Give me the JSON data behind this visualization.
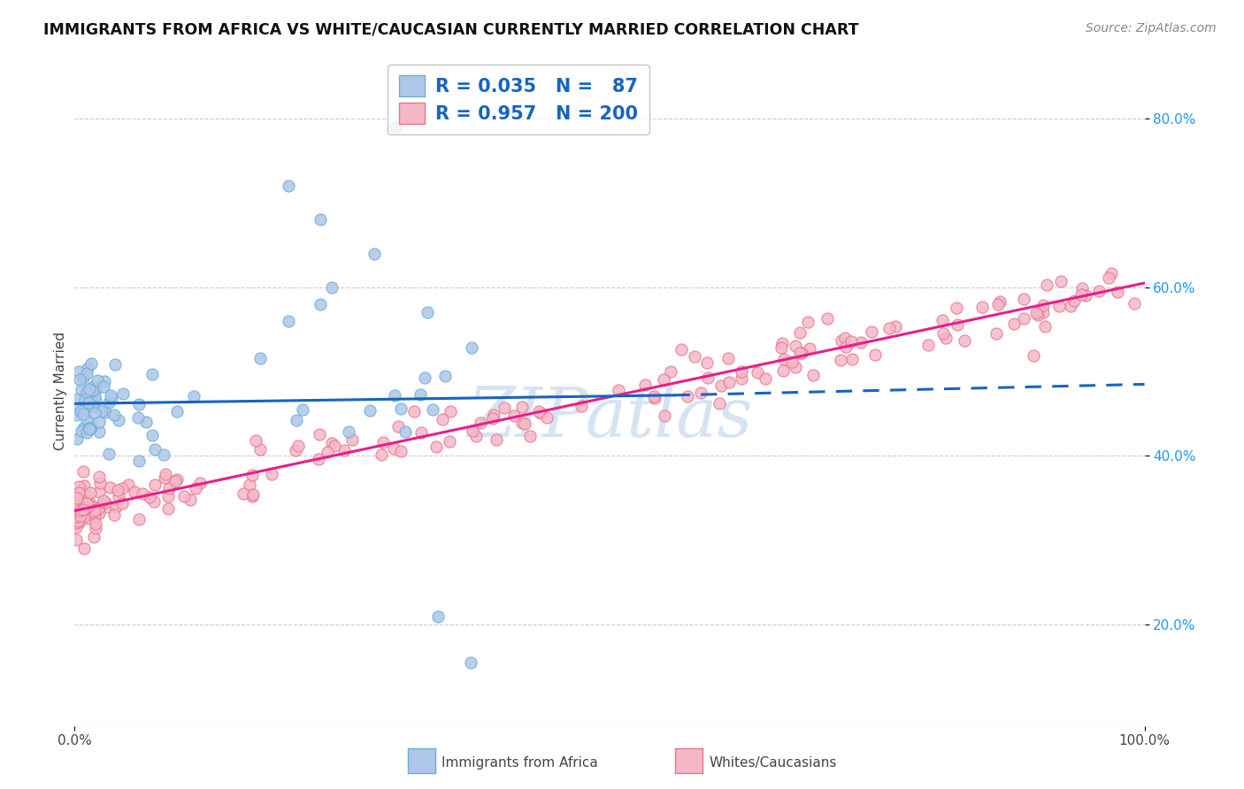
{
  "title": "IMMIGRANTS FROM AFRICA VS WHITE/CAUCASIAN CURRENTLY MARRIED CORRELATION CHART",
  "source": "Source: ZipAtlas.com",
  "ylabel": "Currently Married",
  "xlim": [
    0,
    1
  ],
  "ylim": [
    0.08,
    0.875
  ],
  "ytick_labels_right": [
    "20.0%",
    "40.0%",
    "60.0%",
    "80.0%"
  ],
  "ytick_positions_right": [
    0.2,
    0.4,
    0.6,
    0.8
  ],
  "legend_entries": [
    {
      "label": "Immigrants from Africa",
      "color": "#aec6e8",
      "edge_color": "#6aaed6",
      "R": "0.035",
      "N": "87"
    },
    {
      "label": "Whites/Caucasians",
      "color": "#f4b8c8",
      "edge_color": "#e8748a",
      "R": "0.957",
      "N": "200"
    }
  ],
  "blue_line": {
    "x": [
      0,
      0.56
    ],
    "y": [
      0.462,
      0.472
    ],
    "color": "#1565c0",
    "style": "solid"
  },
  "blue_dashed_line": {
    "x": [
      0.56,
      1.0
    ],
    "y": [
      0.472,
      0.485
    ],
    "color": "#1565c0",
    "style": "dashed"
  },
  "pink_line": {
    "x": [
      0,
      1
    ],
    "y": [
      0.335,
      0.605
    ],
    "color": "#e91e8c",
    "style": "solid"
  },
  "watermark": "ZIPatlas",
  "watermark_color": "#c5d8ee",
  "background_color": "#ffffff",
  "grid_color": "#cccccc"
}
